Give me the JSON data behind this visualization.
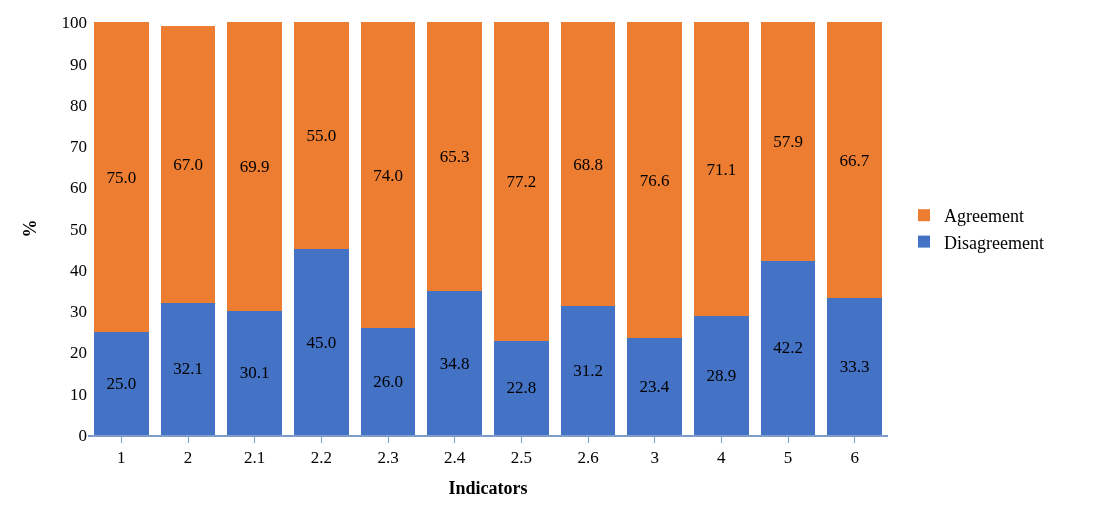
{
  "chart_data": {
    "type": "bar",
    "stacked": true,
    "xlabel": "Indicators",
    "ylabel": "%",
    "categories": [
      "1",
      "2",
      "2.1",
      "2.2",
      "2.3",
      "2.4",
      "2.5",
      "2.6",
      "3",
      "4",
      "5",
      "6"
    ],
    "series": [
      {
        "name": "Disagreement",
        "color": "#4472c4",
        "values": [
          25.0,
          32.1,
          30.1,
          45.0,
          26.0,
          34.8,
          22.8,
          31.2,
          23.4,
          28.9,
          42.2,
          33.3
        ],
        "value_labels": [
          "25.0",
          "32.1",
          "30.1",
          "45.0",
          "26.0",
          "34.8",
          "22.8",
          "31.2",
          "23.4",
          "28.9",
          "42.2",
          "33.3"
        ]
      },
      {
        "name": "Agreement",
        "color": "#ed7d31",
        "values": [
          75.0,
          67.0,
          69.9,
          55.0,
          74.0,
          65.3,
          77.2,
          68.8,
          76.6,
          71.1,
          57.9,
          66.7
        ],
        "value_labels": [
          "75.0",
          "67.0",
          "69.9",
          "55.0",
          "74.0",
          "65.3",
          "77.2",
          "68.8",
          "76.6",
          "71.1",
          "57.9",
          "66.7"
        ]
      }
    ],
    "ylim": [
      0,
      100.1
    ],
    "yticks": [
      0,
      10,
      20,
      30,
      40,
      50,
      60,
      70,
      80,
      90,
      100
    ],
    "legend": "right"
  }
}
